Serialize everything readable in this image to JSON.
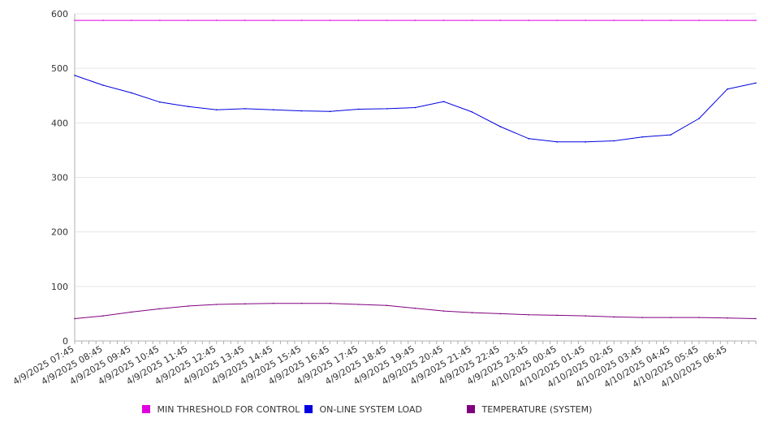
{
  "chart_data": {
    "type": "line",
    "title": "",
    "xlabel": "",
    "ylabel": "",
    "ylim": [
      0,
      600
    ],
    "y_ticks": [
      0,
      100,
      200,
      300,
      400,
      500,
      600
    ],
    "x_tick_labels": [
      "4/9/2025 07:45",
      "4/9/2025 08:45",
      "4/9/2025 09:45",
      "4/9/2025 10:45",
      "4/9/2025 11:45",
      "4/9/2025 12:45",
      "4/9/2025 13:45",
      "4/9/2025 14:45",
      "4/9/2025 15:45",
      "4/9/2025 16:45",
      "4/9/2025 17:45",
      "4/9/2025 18:45",
      "4/9/2025 19:45",
      "4/9/2025 20:45",
      "4/9/2025 21:45",
      "4/9/2025 22:45",
      "4/9/2025 23:45",
      "4/10/2025 00:45",
      "4/10/2025 01:45",
      "4/10/2025 02:45",
      "4/10/2025 03:45",
      "4/10/2025 04:45",
      "4/10/2025 05:45",
      "4/10/2025 06:45"
    ],
    "x_start": "4/9/2025 07:45",
    "x_end": "4/10/2025 07:45",
    "x_step_minutes": 60,
    "grid": {
      "horizontal": true,
      "vertical": false
    },
    "legend_position": "bottom",
    "series": [
      {
        "name": "MIN THRESHOLD FOR CONTROL",
        "color": "#e000e0",
        "values": [
          588,
          588,
          588,
          588,
          588,
          588,
          588,
          588,
          588,
          588,
          588,
          588,
          588,
          588,
          588,
          588,
          588,
          588,
          588,
          588,
          588,
          588,
          588,
          588,
          588
        ]
      },
      {
        "name": "ON-LINE SYSTEM LOAD",
        "color": "#0000e0",
        "values": [
          487,
          469,
          455,
          438,
          430,
          424,
          426,
          424,
          422,
          421,
          425,
          426,
          428,
          439,
          420,
          393,
          371,
          365,
          365,
          367,
          374,
          378,
          408,
          462,
          473
        ]
      },
      {
        "name": "TEMPERATURE (SYSTEM)",
        "color": "#800080",
        "values": [
          41,
          46,
          53,
          59,
          64,
          67,
          68,
          69,
          69,
          69,
          67,
          65,
          60,
          55,
          52,
          50,
          48,
          47,
          46,
          44,
          43,
          43,
          43,
          42,
          41
        ]
      }
    ]
  }
}
